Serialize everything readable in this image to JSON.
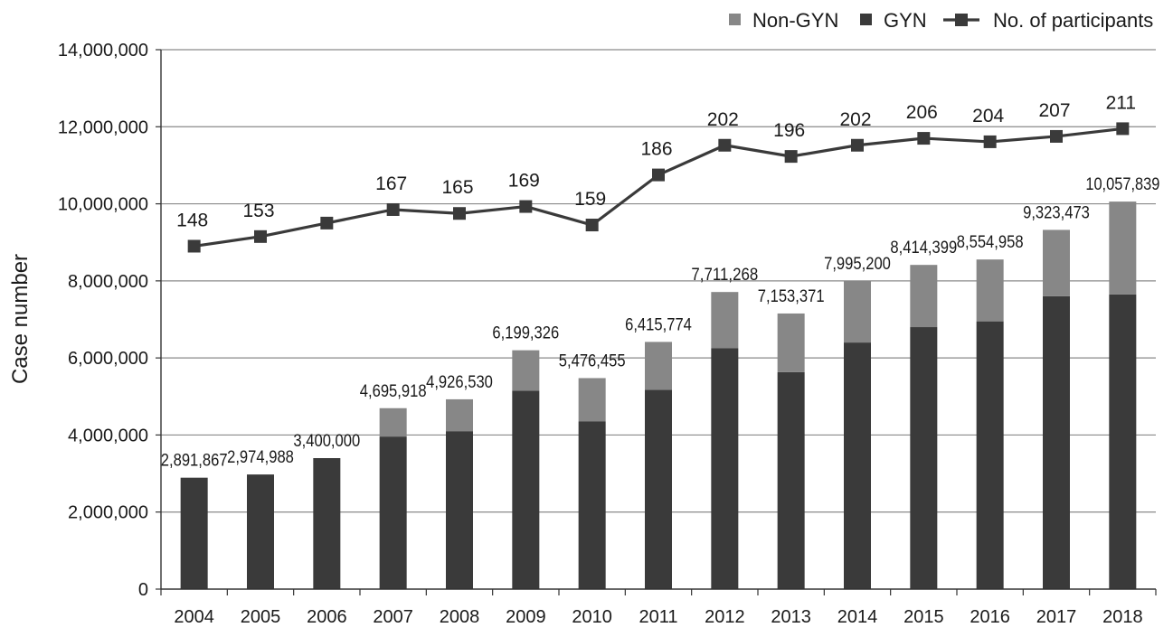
{
  "chart_data": {
    "type": "bar",
    "stacked": true,
    "title": "",
    "xlabel": "",
    "ylabel": "Case number",
    "ylim": [
      0,
      14000000
    ],
    "ytick_values": [
      0,
      2000000,
      4000000,
      6000000,
      8000000,
      10000000,
      12000000,
      14000000
    ],
    "ytick_labels": [
      "0",
      "2,000,000",
      "4,000,000",
      "6,000,000",
      "8,000,000",
      "10,000,000",
      "12,000,000",
      "14,000,000"
    ],
    "grid": true,
    "legend_position": "top-right",
    "categories": [
      "2004",
      "2005",
      "2006",
      "2007",
      "2008",
      "2009",
      "2010",
      "2011",
      "2012",
      "2013",
      "2014",
      "2015",
      "2016",
      "2017",
      "2018"
    ],
    "series": [
      {
        "name": "GYN",
        "color": "#3a3a3a",
        "values": [
          2891867,
          2974988,
          3400000,
          3960000,
          4100000,
          5150000,
          4350000,
          5170000,
          6250000,
          5630000,
          6400000,
          6800000,
          6950000,
          7600000,
          7650000
        ]
      },
      {
        "name": "Non-GYN",
        "color": "#878787",
        "values": [
          0,
          0,
          0,
          735918,
          826530,
          1049326,
          1126455,
          1245774,
          1461268,
          1523371,
          1595200,
          1614399,
          1604958,
          1723473,
          2407839
        ]
      }
    ],
    "totals": [
      2891867,
      2974988,
      3400000,
      4695918,
      4926530,
      6199326,
      5476455,
      6415774,
      7711268,
      7153371,
      7995200,
      8414399,
      8554958,
      9323473,
      10057839
    ],
    "total_labels": [
      "2,891,867",
      "2,974,988",
      "3,400,000",
      "4,695,918",
      "4,926,530",
      "6,199,326",
      "5,476,455",
      "6,415,774",
      "7,711,268",
      "7,153,371",
      "7,995,200",
      "8,414,399",
      "8,554,958",
      "9,323,473",
      "10,057,839"
    ],
    "line_series": {
      "name": "No. of participants",
      "color": "#3a3a3a",
      "values": [
        148,
        153,
        160,
        167,
        165,
        169,
        159,
        186,
        202,
        196,
        202,
        206,
        204,
        207,
        211
      ],
      "labels": [
        "148",
        "153",
        "",
        "167",
        "165",
        "169",
        "159",
        "186",
        "202",
        "196",
        "202",
        "206",
        "204",
        "207",
        "211"
      ],
      "plotted_case_equiv": [
        8900000,
        9150000,
        9500000,
        9850000,
        9750000,
        9930000,
        9450000,
        10750000,
        11520000,
        11230000,
        11520000,
        11700000,
        11610000,
        11750000,
        11950000
      ]
    },
    "legend": [
      {
        "name": "Non-GYN",
        "marker": "square",
        "color": "#878787"
      },
      {
        "name": "GYN",
        "marker": "square",
        "color": "#3a3a3a"
      },
      {
        "name": "No. of participants",
        "marker": "line-square",
        "color": "#3a3a3a"
      }
    ]
  }
}
